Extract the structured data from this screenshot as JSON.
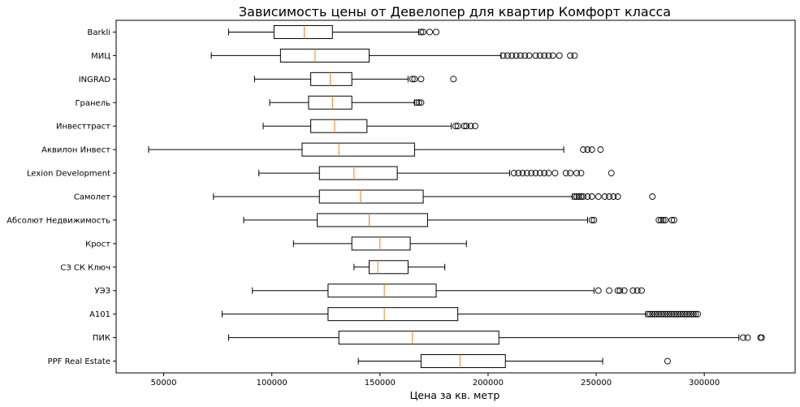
{
  "chart_data": {
    "type": "boxplot",
    "orientation": "horizontal",
    "title": "Зависимость цены от Девелопер для квартир Комфорт класса",
    "xlabel": "Цена за кв. метр",
    "ylabel": "",
    "xlim": [
      28000,
      342000
    ],
    "xticks": [
      50000,
      100000,
      150000,
      200000,
      250000,
      300000
    ],
    "xtick_labels": [
      "50000",
      "100000",
      "150000",
      "200000",
      "250000",
      "300000"
    ],
    "grid": false,
    "colors": {
      "box": "#000000",
      "median": "#ff7f0e",
      "frame": "#000000"
    },
    "categories": [
      "Barkli",
      "МИЦ",
      "INGRAD",
      "Гранель",
      "Инвесттраст",
      "Аквилон Инвест",
      "Lexion Development",
      "Самолет",
      "Абсолют Недвижимость",
      "Крост",
      "СЗ СК Ключ",
      "УЭЗ",
      "А101",
      "ПИК",
      "PPF Real Estate"
    ],
    "boxes": [
      {
        "whislo": 80000,
        "q1": 101000,
        "med": 115000,
        "q3": 128000,
        "whishi": 168000,
        "fliers": [
          169000,
          170000,
          173000,
          176000
        ]
      },
      {
        "whislo": 72000,
        "q1": 104000,
        "med": 120000,
        "q3": 145000,
        "whishi": 206000,
        "fliers": [
          207000,
          209000,
          211000,
          213000,
          215000,
          217000,
          219000,
          222000,
          224000,
          226000,
          228000,
          230000,
          233000,
          238000,
          240000
        ]
      },
      {
        "whislo": 92000,
        "q1": 118000,
        "med": 127000,
        "q3": 137000,
        "whishi": 163000,
        "fliers": [
          165000,
          166000,
          169000,
          184000
        ]
      },
      {
        "whislo": 99000,
        "q1": 117000,
        "med": 128000,
        "q3": 137000,
        "whishi": 166000,
        "fliers": [
          167000,
          168000,
          169000
        ]
      },
      {
        "whislo": 96000,
        "q1": 118000,
        "med": 129000,
        "q3": 144000,
        "whishi": 183000,
        "fliers": [
          185000,
          186000,
          189000,
          190000,
          192000,
          194000
        ]
      },
      {
        "whislo": 43000,
        "q1": 114000,
        "med": 131000,
        "q3": 166000,
        "whishi": 235000,
        "fliers": [
          244000,
          246000,
          248000,
          252000
        ]
      },
      {
        "whislo": 94000,
        "q1": 122000,
        "med": 138000,
        "q3": 158000,
        "whishi": 210000,
        "fliers": [
          212000,
          214000,
          216000,
          218000,
          220000,
          222000,
          224000,
          226000,
          228000,
          231000,
          236000,
          238000,
          241000,
          243000,
          257000
        ]
      },
      {
        "whislo": 73000,
        "q1": 122000,
        "med": 141000,
        "q3": 170000,
        "whishi": 239000,
        "fliers": [
          240000,
          241000,
          242000,
          243000,
          244000,
          246000,
          248000,
          251000,
          254000,
          256000,
          258000,
          260000,
          276000
        ]
      },
      {
        "whislo": 87000,
        "q1": 121000,
        "med": 145000,
        "q3": 172000,
        "whishi": 246000,
        "fliers": [
          248000,
          249000,
          279000,
          280000,
          281000,
          282000,
          285000,
          286000
        ]
      },
      {
        "whislo": 110000,
        "q1": 137000,
        "med": 150000,
        "q3": 164000,
        "whishi": 190000,
        "fliers": []
      },
      {
        "whislo": 138000,
        "q1": 145000,
        "med": 149000,
        "q3": 163000,
        "whishi": 180000,
        "fliers": []
      },
      {
        "whislo": 91000,
        "q1": 126000,
        "med": 152000,
        "q3": 176000,
        "whishi": 249000,
        "fliers": [
          251000,
          256000,
          260000,
          261000,
          263000,
          267000,
          269000,
          271000
        ]
      },
      {
        "whislo": 77000,
        "q1": 126000,
        "med": 152000,
        "q3": 186000,
        "whishi": 273000,
        "fliers": [
          274000,
          275000,
          276000,
          277000,
          278000,
          279000,
          280000,
          281000,
          282000,
          283000,
          284000,
          285000,
          286000,
          287000,
          288000,
          289000,
          290000,
          291000,
          292000,
          293000,
          294000,
          295000,
          296000,
          297000
        ]
      },
      {
        "whislo": 80000,
        "q1": 131000,
        "med": 165000,
        "q3": 205000,
        "whishi": 316000,
        "fliers": [
          318000,
          320000,
          326000,
          326500
        ]
      },
      {
        "whislo": 140000,
        "q1": 169000,
        "med": 187000,
        "q3": 208000,
        "whishi": 253000,
        "fliers": [
          283000
        ]
      }
    ]
  }
}
